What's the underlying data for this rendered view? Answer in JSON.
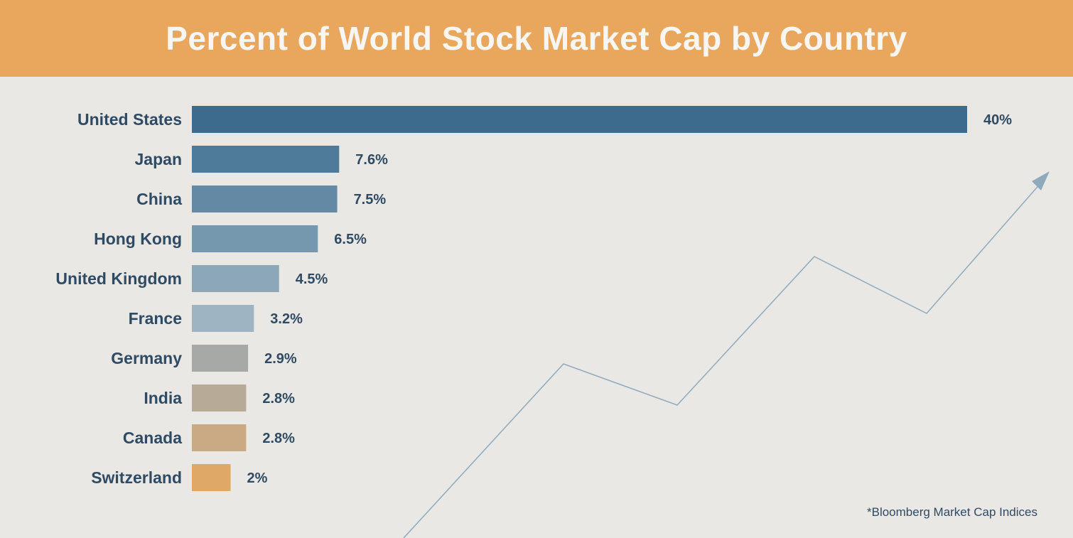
{
  "header": {
    "title": "Percent of World Stock Market Cap by Country",
    "background_color": "#e9a75e"
  },
  "footnote": "*Bloomberg Market Cap Indices",
  "decoration": {
    "trend_line_color": "#8faabb",
    "icon": "arrow-up-right-icon"
  },
  "chart_data": {
    "type": "bar",
    "orientation": "horizontal",
    "title": "Percent of World Stock Market Cap by Country",
    "xlabel": "",
    "ylabel": "",
    "xlim": [
      0,
      40
    ],
    "grid": false,
    "categories": [
      "United States",
      "Japan",
      "China",
      "Hong Kong",
      "United Kingdom",
      "France",
      "Germany",
      "India",
      "Canada",
      "Switzerland"
    ],
    "values": [
      40,
      7.6,
      7.5,
      6.5,
      4.5,
      3.2,
      2.9,
      2.8,
      2.8,
      2
    ],
    "value_labels": [
      "40%",
      "7.6%",
      "7.5%",
      "6.5%",
      "4.5%",
      "3.2%",
      "2.9%",
      "2.8%",
      "2.8%",
      "2%"
    ],
    "colors": [
      "#3d6b8d",
      "#4e7b99",
      "#6389a4",
      "#7598ae",
      "#8da7ba",
      "#9fb4c3",
      "#a6a9a5",
      "#b7ab98",
      "#c9aa84",
      "#e0a866"
    ],
    "source": "*Bloomberg Market Cap Indices"
  }
}
